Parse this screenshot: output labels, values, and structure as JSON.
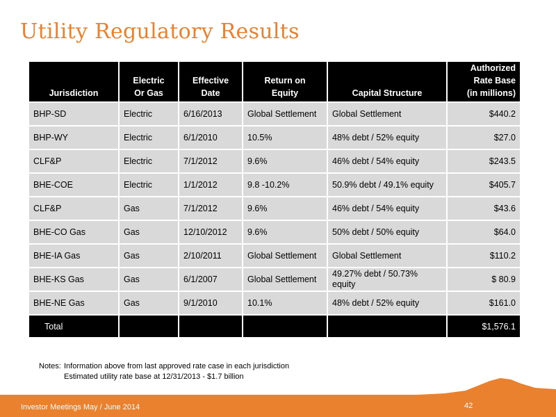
{
  "title": "Utility Regulatory Results",
  "table": {
    "headers": {
      "jurisdiction": [
        "Jurisdiction"
      ],
      "type": [
        "Electric",
        "Or Gas"
      ],
      "date": [
        "Effective",
        "Date"
      ],
      "roe": [
        "Return on",
        "Equity"
      ],
      "capital": [
        "Capital Structure"
      ],
      "rate_base": [
        "Authorized",
        "Rate Base",
        "(in millions)"
      ]
    },
    "rows": [
      {
        "jurisdiction": "BHP-SD",
        "type": "Electric",
        "date": "6/16/2013",
        "roe": "Global Settlement",
        "capital": "Global Settlement",
        "rate_base": "$440.2"
      },
      {
        "jurisdiction": "BHP-WY",
        "type": "Electric",
        "date": "6/1/2010",
        "roe": "10.5%",
        "capital": "48% debt / 52% equity",
        "rate_base": "$27.0"
      },
      {
        "jurisdiction": "CLF&P",
        "type": "Electric",
        "date": "7/1/2012",
        "roe": "9.6%",
        "capital": "46% debt / 54% equity",
        "rate_base": "$243.5"
      },
      {
        "jurisdiction": "BHE-COE",
        "type": "Electric",
        "date": "1/1/2012",
        "roe": "9.8 -10.2%",
        "capital": "50.9% debt / 49.1% equity",
        "rate_base": "$405.7"
      },
      {
        "jurisdiction": "CLF&P",
        "type": "Gas",
        "date": "7/1/2012",
        "roe": "9.6%",
        "capital": "46% debt / 54% equity",
        "rate_base": "$43.6"
      },
      {
        "jurisdiction": "BHE-CO Gas",
        "type": "Gas",
        "date": "12/10/2012",
        "roe": "9.6%",
        "capital": "50% debt / 50% equity",
        "rate_base": "$64.0"
      },
      {
        "jurisdiction": "BHE-IA Gas",
        "type": "Gas",
        "date": "2/10/2011",
        "roe": "Global Settlement",
        "capital": "Global Settlement",
        "rate_base": "$110.2"
      },
      {
        "jurisdiction": "BHE-KS Gas",
        "type": "Gas",
        "date": "6/1/2007",
        "roe": "Global Settlement",
        "capital": "49.27% debt / 50.73% equity",
        "rate_base": "$ 80.9"
      },
      {
        "jurisdiction": "BHE-NE Gas",
        "type": "Gas",
        "date": "9/1/2010",
        "roe": "10.1%",
        "capital": "48% debt / 52% equity",
        "rate_base": "$161.0"
      }
    ],
    "total": {
      "label": "Total",
      "rate_base": "$1,576.1"
    }
  },
  "notes": {
    "label": "Notes:",
    "lines": [
      "Information above from last approved rate case in each jurisdiction",
      "Estimated utility rate base at 12/31/2013 - $1.7 billion"
    ]
  },
  "footer": {
    "left_text": "Investor Meetings May / June 2014",
    "page_number": "42"
  },
  "colors": {
    "accent": "#e9812f",
    "header_bg": "#000000",
    "cell_bg": "#d9d9d9"
  }
}
